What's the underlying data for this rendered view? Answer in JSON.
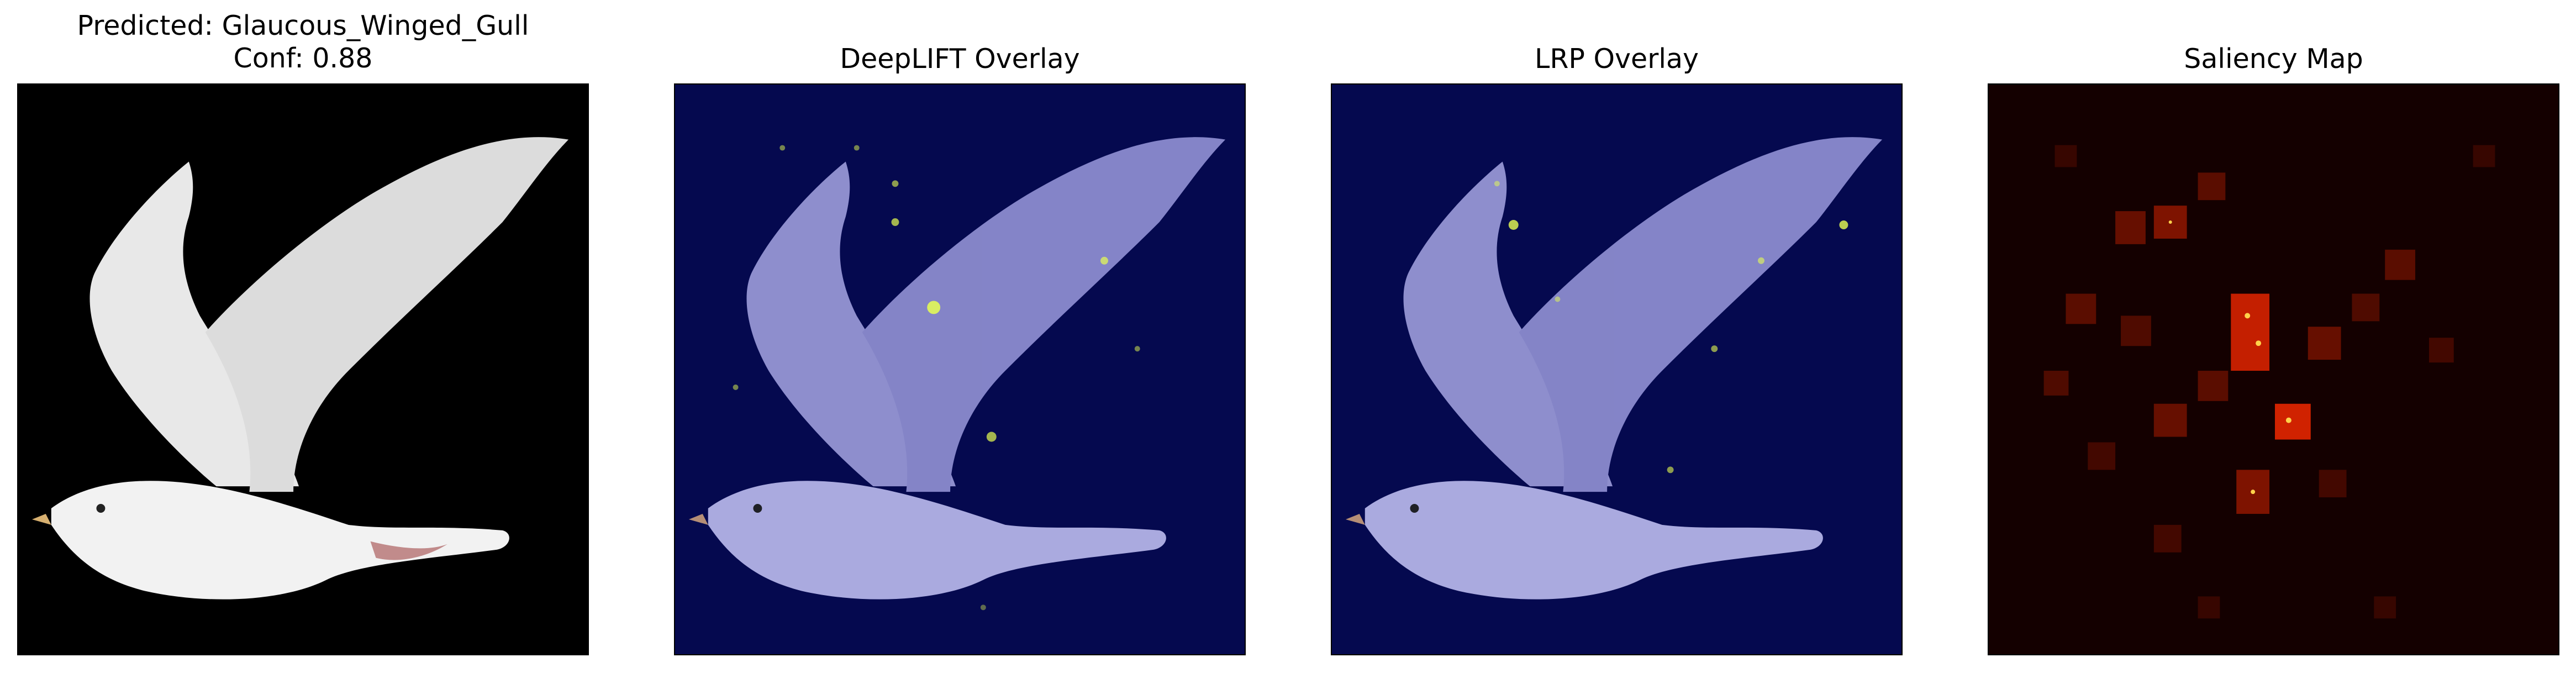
{
  "figure": {
    "panels": [
      {
        "title": "Predicted: Glaucous_Winged_Gull\nConf: 0.88",
        "kind": "original"
      },
      {
        "title": "DeepLIFT Overlay",
        "kind": "overlay"
      },
      {
        "title": "LRP Overlay",
        "kind": "overlay"
      },
      {
        "title": "Saliency Map",
        "kind": "heatmap"
      }
    ]
  },
  "colors": {
    "original_background": "#000000",
    "overlay_background": "#05094f",
    "heatmap_background": "#140000",
    "bird_white": "#f2f2f2",
    "bird_overlay": "#b8b8ec",
    "beak": "#d7b070",
    "attribution_hot": "#e8ff50",
    "saliency_hot": "#ff2a00"
  }
}
